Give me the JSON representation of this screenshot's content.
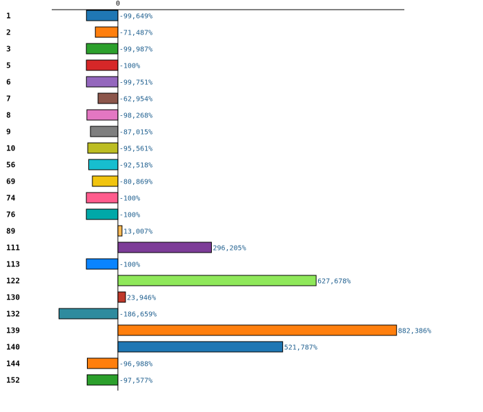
{
  "chart_data": {
    "type": "bar",
    "orientation": "horizontal",
    "title": "",
    "xlabel": "",
    "ylabel": "",
    "xlim": [
      -209.5,
      907.0
    ],
    "x_ticks": [
      0
    ],
    "x_tick_labels": [
      "0"
    ],
    "value_suffix": "%",
    "categories": [
      "1",
      "2",
      "3",
      "5",
      "6",
      "7",
      "8",
      "9",
      "10",
      "56",
      "69",
      "74",
      "76",
      "89",
      "111",
      "113",
      "122",
      "130",
      "132",
      "139",
      "140",
      "144",
      "152"
    ],
    "values": [
      -99.649,
      -71.487,
      -99.987,
      -100,
      -99.751,
      -62.954,
      -98.268,
      -87.015,
      -95.561,
      -92.518,
      -80.869,
      -100,
      -100,
      13.007,
      296.205,
      -100,
      627.678,
      23.946,
      -186.659,
      882.386,
      521.787,
      -96.988,
      -97.577
    ],
    "value_labels": [
      "-99,649%",
      "-71,487%",
      "-99,987%",
      "-100%",
      "-99,751%",
      "-62,954%",
      "-98,268%",
      "-87,015%",
      "-95,561%",
      "-92,518%",
      "-80,869%",
      "-100%",
      "-100%",
      "13,007%",
      "296,205%",
      "-100%",
      "627,678%",
      "23,946%",
      "-186,659%",
      "882,386%",
      "521,787%",
      "-96,988%",
      "-97,577%"
    ],
    "colors": [
      "#1f77b4",
      "#ff7f0e",
      "#2ca02c",
      "#d62728",
      "#9467bd",
      "#8c564b",
      "#e377c2",
      "#7f7f7f",
      "#bcbd22",
      "#17becf",
      "#f1c40f",
      "#ff5c8d",
      "#00a8a8",
      "#ffbb55",
      "#7d3c98",
      "#0a84ff",
      "#8fe85a",
      "#c0392b",
      "#2e8b9e",
      "#ff7f0e",
      "#1f77b4",
      "#ff7f0e",
      "#2ca02c"
    ]
  }
}
